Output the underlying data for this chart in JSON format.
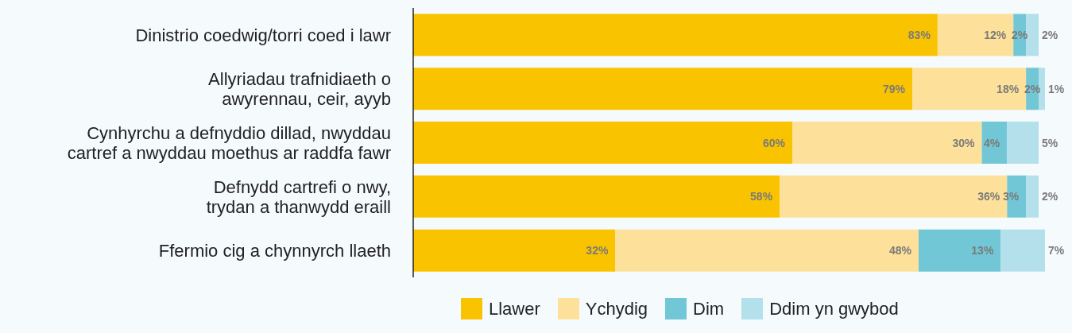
{
  "chart_data": {
    "type": "bar",
    "orientation": "horizontal",
    "stacked": true,
    "legend": "bottom",
    "categories": [
      "Dinistrio coedwig/torri coed i lawr",
      "Allyriadau trafnidiaeth o\nawyrennau, ceir, ayyb",
      "Cynhyrchu a defnyddio dillad, nwyddau\ncartref a nwyddau moethus ar raddfa fawr",
      "Defnydd cartrefi o nwy,\ntrydan a thanwydd eraill",
      "Ffermio cig a chynnyrch llaeth"
    ],
    "series": [
      {
        "name": "Llawer",
        "color": "#f9c300",
        "values": [
          83,
          79,
          60,
          58,
          32
        ],
        "value_labels": [
          "83%",
          "79%",
          "60%",
          "58%",
          "32%"
        ]
      },
      {
        "name": "Ychydig",
        "color": "#fde19a",
        "values": [
          12,
          18,
          30,
          36,
          48
        ],
        "value_labels": [
          "12%",
          "18%",
          "30%",
          "36%",
          "48%"
        ]
      },
      {
        "name": "Dim",
        "color": "#72c7d6",
        "values": [
          2,
          2,
          4,
          3,
          13
        ],
        "value_labels": [
          "2%",
          "2%",
          "4%",
          "3%",
          "13%"
        ]
      },
      {
        "name": "Ddim yn gwybod",
        "color": "#b3e0ea",
        "values": [
          2,
          1,
          5,
          2,
          7
        ],
        "value_labels": [
          "2%",
          "1%",
          "5%",
          "2%",
          "7%"
        ]
      }
    ]
  }
}
